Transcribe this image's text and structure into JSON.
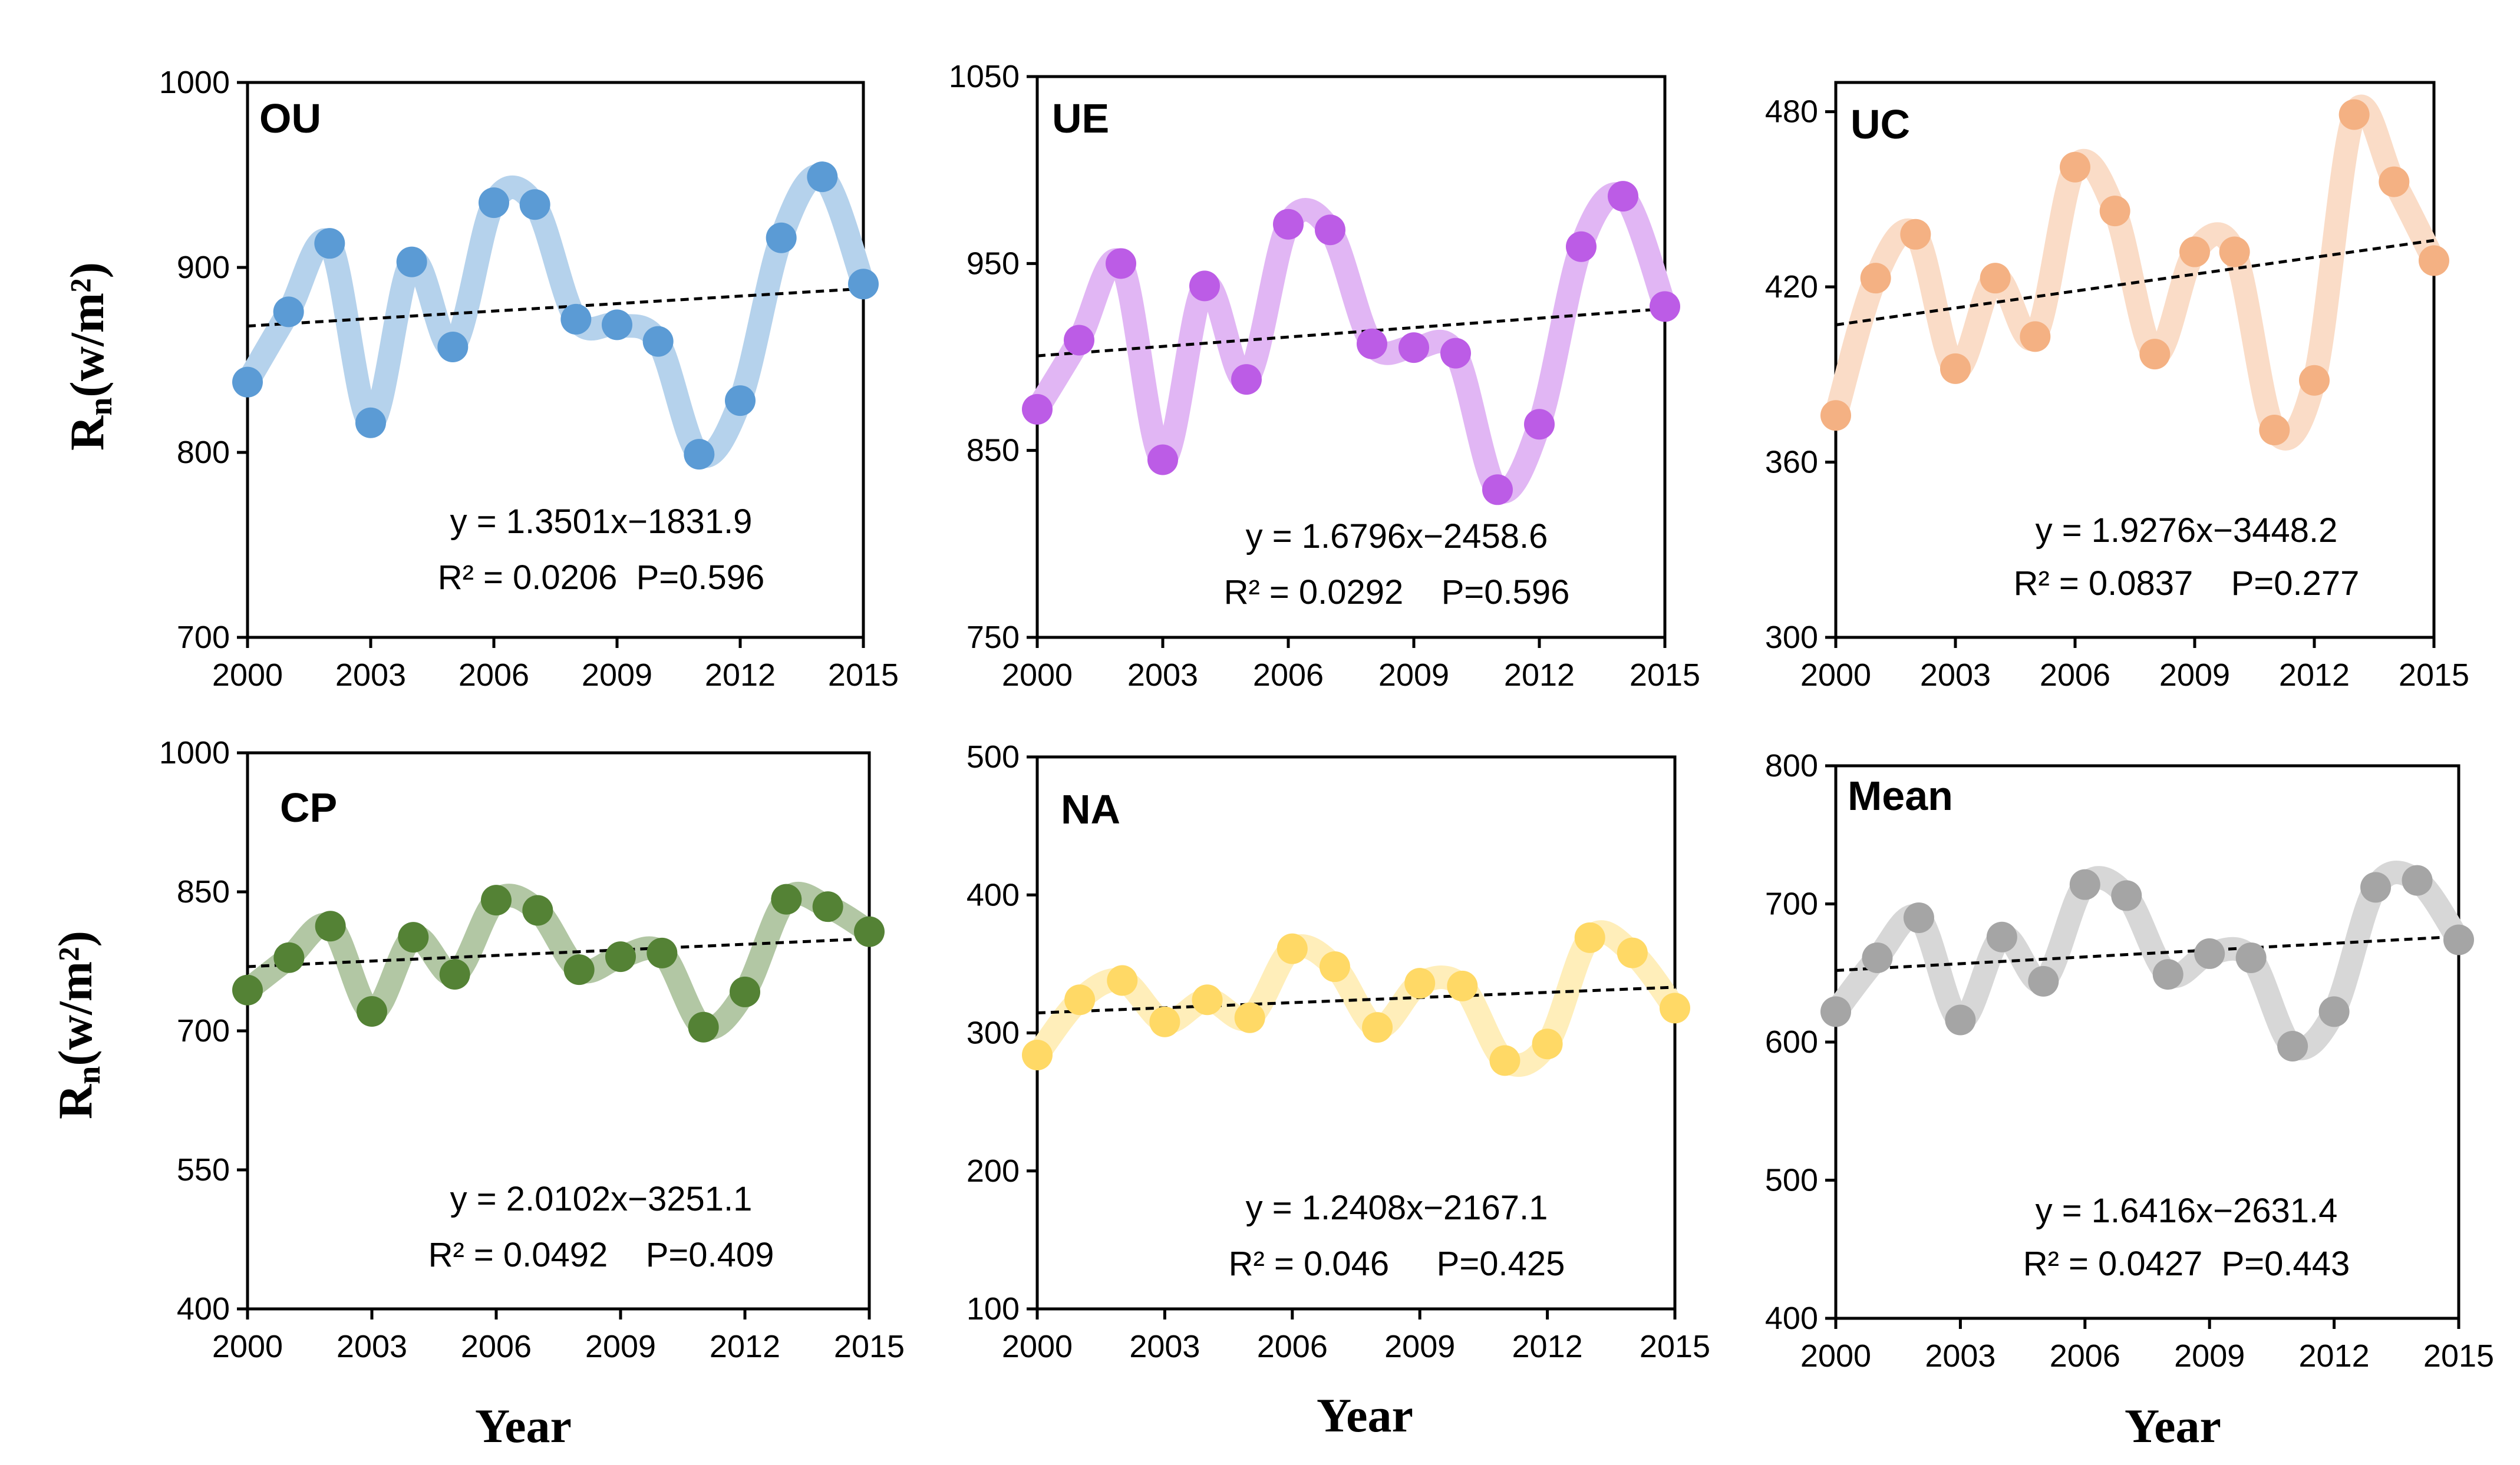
{
  "ylabel": {
    "main": "R",
    "sub": "n",
    "rest": "(w/m²)"
  },
  "xlabel": "Year",
  "chart_data": [
    {
      "type": "line",
      "title": "OU",
      "color": "#5b9bd5",
      "x": [
        2000,
        2001,
        2002,
        2003,
        2004,
        2005,
        2006,
        2007,
        2008,
        2009,
        2010,
        2011,
        2012,
        2013,
        2014,
        2015
      ],
      "values": [
        838,
        876,
        913,
        816,
        903,
        857,
        935,
        934,
        872,
        869,
        860,
        799,
        828,
        916,
        949,
        891
      ],
      "ylim": [
        700,
        1000
      ],
      "yticks": [
        700,
        800,
        900,
        1000
      ],
      "xticks": [
        2000,
        2003,
        2006,
        2009,
        2012,
        2015
      ],
      "trend": {
        "slope": 1.3501,
        "intercept": -1831.9
      },
      "equation": "y = 1.3501x−1831.9",
      "stats": "R² = 0.0206  P=0.596"
    },
    {
      "type": "line",
      "title": "UE",
      "color": "#bc5ce6",
      "x": [
        2000,
        2001,
        2002,
        2003,
        2004,
        2005,
        2006,
        2007,
        2008,
        2009,
        2010,
        2011,
        2012,
        2013,
        2014,
        2015
      ],
      "values": [
        872,
        909,
        950,
        845,
        938,
        888,
        971,
        968,
        907,
        905,
        902,
        829,
        864,
        959,
        986,
        927
      ],
      "ylim": [
        750,
        1050
      ],
      "yticks": [
        750,
        850,
        950,
        1050
      ],
      "xticks": [
        2000,
        2003,
        2006,
        2009,
        2012,
        2015
      ],
      "trend": {
        "slope": 1.6796,
        "intercept": -2458.6
      },
      "equation": "y = 1.6796x−2458.6",
      "stats": "R² = 0.0292    P=0.596"
    },
    {
      "type": "line",
      "title": "UC",
      "color": "#f4b183",
      "x": [
        2000,
        2001,
        2002,
        2003,
        2004,
        2005,
        2006,
        2007,
        2008,
        2009,
        2010,
        2011,
        2012,
        2013,
        2014,
        2015
      ],
      "values": [
        376,
        423,
        438,
        392,
        423,
        403,
        461,
        446,
        397,
        432,
        432,
        371,
        388,
        479,
        456,
        429
      ],
      "ylim": [
        300,
        490
      ],
      "yticks": [
        300,
        360,
        420,
        480
      ],
      "xticks": [
        2000,
        2003,
        2006,
        2009,
        2012,
        2015
      ],
      "trend": {
        "slope": 1.9276,
        "intercept": -3448.2
      },
      "equation": "y = 1.9276x−3448.2",
      "stats": "R² = 0.0837    P=0.277"
    },
    {
      "type": "line",
      "title": "CP",
      "color": "#548235",
      "x": [
        2000,
        2001,
        2002,
        2003,
        2004,
        2005,
        2006,
        2007,
        2008,
        2009,
        2010,
        2011,
        2012,
        2013,
        2014,
        2015
      ],
      "values": [
        744,
        779,
        813,
        721,
        801,
        761,
        841,
        830,
        766,
        780,
        784,
        704,
        742,
        842,
        834,
        807
      ],
      "ylim": [
        400,
        1000
      ],
      "yticks": [
        400,
        550,
        700,
        850,
        1000
      ],
      "xticks": [
        2000,
        2003,
        2006,
        2009,
        2012,
        2015
      ],
      "trend": {
        "slope": 2.0102,
        "intercept": -3251.1
      },
      "equation": "y = 2.0102x−3251.1",
      "stats": "R² = 0.0492    P=0.409"
    },
    {
      "type": "line",
      "title": "NA",
      "color": "#ffd966",
      "x": [
        2000,
        2001,
        2002,
        2003,
        2004,
        2005,
        2006,
        2007,
        2008,
        2009,
        2010,
        2011,
        2012,
        2013,
        2014,
        2015
      ],
      "values": [
        284,
        324,
        338,
        308,
        324,
        311,
        361,
        348,
        304,
        336,
        334,
        280,
        292,
        369,
        358,
        318
      ],
      "ylim": [
        100,
        500
      ],
      "yticks": [
        100,
        200,
        300,
        400,
        500
      ],
      "xticks": [
        2000,
        2003,
        2006,
        2009,
        2012,
        2015
      ],
      "trend": {
        "slope": 1.2408,
        "intercept": -2167.1
      },
      "equation": "y = 1.2408x−2167.1",
      "stats": "R² = 0.046     P=0.425"
    },
    {
      "type": "line",
      "title": "Mean",
      "color": "#a5a5a5",
      "x": [
        2000,
        2001,
        2002,
        2003,
        2004,
        2005,
        2006,
        2007,
        2008,
        2009,
        2010,
        2011,
        2012,
        2013,
        2014,
        2015
      ],
      "values": [
        622,
        661,
        690,
        616,
        676,
        644,
        714,
        706,
        649,
        664,
        661,
        597,
        622,
        712,
        717,
        674
      ],
      "ylim": [
        400,
        800
      ],
      "yticks": [
        400,
        500,
        600,
        700,
        800
      ],
      "xticks": [
        2000,
        2003,
        2006,
        2009,
        2012,
        2015
      ],
      "trend": {
        "slope": 1.6416,
        "intercept": -2631.4
      },
      "equation": "y = 1.6416x−2631.4",
      "stats": "R² = 0.0427  P=0.443"
    }
  ]
}
